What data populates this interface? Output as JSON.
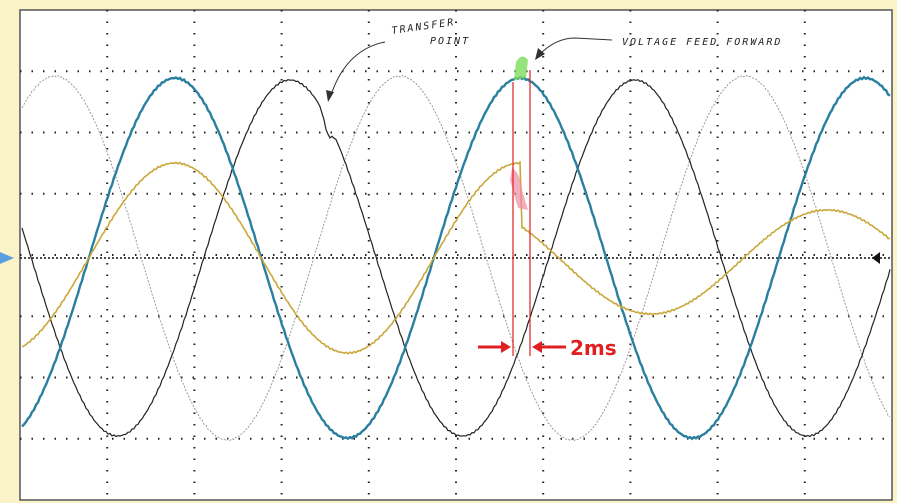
{
  "annotations": {
    "transfer_line1": "TRANSFER",
    "transfer_line2": "POINT",
    "feed_forward": "VOLTAGE FEED FORWARD",
    "interval": "2ms"
  }
}
